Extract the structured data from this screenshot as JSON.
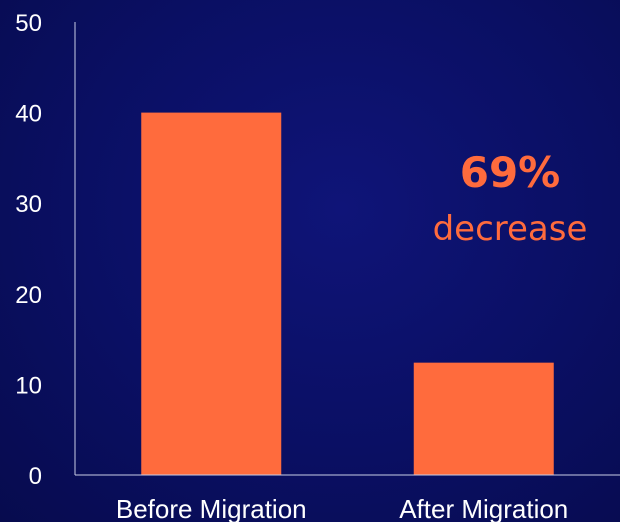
{
  "chart_data": {
    "type": "bar",
    "categories": [
      "Before Migration",
      "After Migration"
    ],
    "values": [
      40,
      12.4
    ],
    "ylim": [
      0,
      50
    ],
    "yticks": [
      0,
      10,
      20,
      30,
      40,
      50
    ],
    "grid": false,
    "bar_color": "#ff6b3d",
    "axis_color": "#c9cde6",
    "annotation": {
      "value": "69%",
      "text": "decrease"
    }
  }
}
